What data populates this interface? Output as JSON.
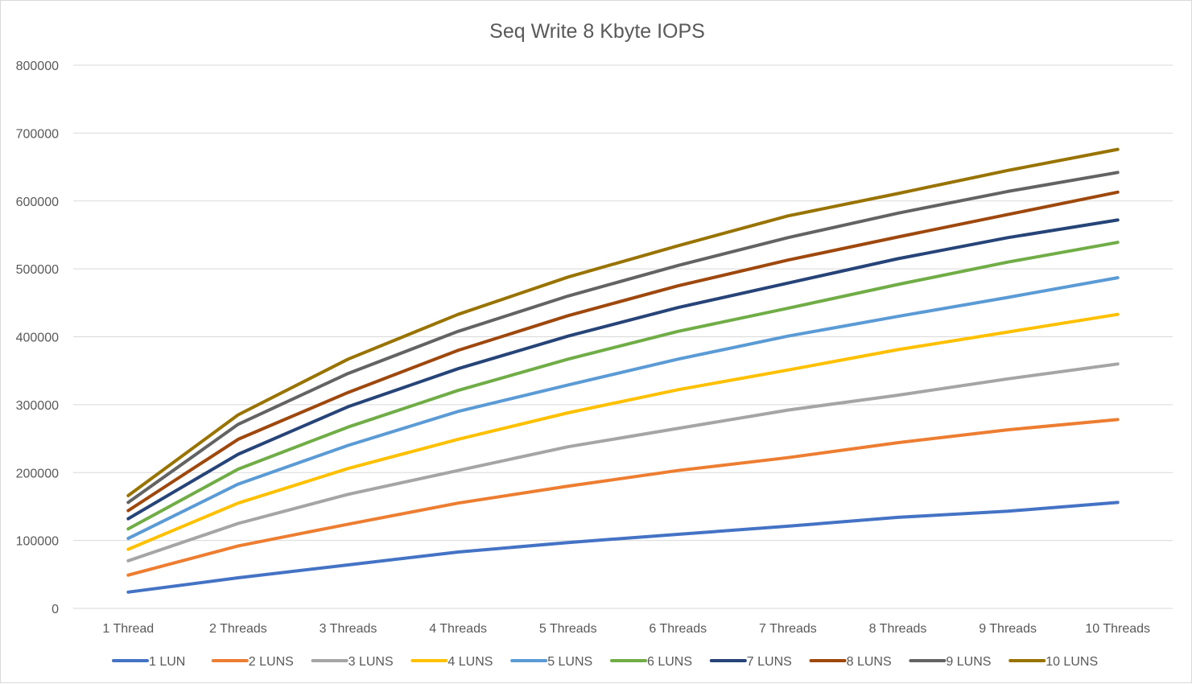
{
  "chart_data": {
    "type": "line",
    "title": "Seq Write 8 Kbyte IOPS",
    "xlabel": "",
    "ylabel": "",
    "ylim": [
      0,
      800000
    ],
    "yticks": [
      0,
      100000,
      200000,
      300000,
      400000,
      500000,
      600000,
      700000,
      800000
    ],
    "ytick_labels": [
      "0",
      "100000",
      "200000",
      "300000",
      "400000",
      "500000",
      "600000",
      "700000",
      "800000"
    ],
    "grid": true,
    "legend_position": "bottom",
    "categories": [
      "1 Thread",
      "2 Threads",
      "3 Threads",
      "4 Threads",
      "5 Threads",
      "6 Threads",
      "7 Threads",
      "8 Threads",
      "9 Threads",
      "10 Threads"
    ],
    "series": [
      {
        "name": "1 LUN",
        "color": "#4472c4",
        "values": [
          24000,
          45000,
          64000,
          83000,
          97000,
          109000,
          121000,
          134000,
          143000,
          156000
        ]
      },
      {
        "name": "2 LUNS",
        "color": "#ed7d31",
        "values": [
          49000,
          92000,
          124000,
          155000,
          180000,
          203000,
          222000,
          244000,
          263000,
          278000
        ]
      },
      {
        "name": "3 LUNS",
        "color": "#a5a5a5",
        "values": [
          70000,
          125000,
          168000,
          203000,
          238000,
          265000,
          292000,
          314000,
          338000,
          360000
        ]
      },
      {
        "name": "4 LUNS",
        "color": "#ffc000",
        "values": [
          87000,
          155000,
          206000,
          249000,
          288000,
          322000,
          351000,
          381000,
          407000,
          433000
        ]
      },
      {
        "name": "5 LUNS",
        "color": "#5b9bd5",
        "values": [
          103000,
          183000,
          240000,
          290000,
          329000,
          367000,
          401000,
          430000,
          458000,
          487000
        ]
      },
      {
        "name": "6 LUNS",
        "color": "#70ad47",
        "values": [
          117000,
          205000,
          267000,
          321000,
          367000,
          408000,
          442000,
          477000,
          510000,
          539000
        ]
      },
      {
        "name": "7 LUNS",
        "color": "#264478",
        "values": [
          132000,
          227000,
          297000,
          353000,
          401000,
          443000,
          479000,
          515000,
          546000,
          572000
        ]
      },
      {
        "name": "8 LUNS",
        "color": "#9e480e",
        "values": [
          144000,
          249000,
          318000,
          380000,
          431000,
          475000,
          513000,
          547000,
          580000,
          613000
        ]
      },
      {
        "name": "9 LUNS",
        "color": "#636363",
        "values": [
          156000,
          271000,
          346000,
          408000,
          460000,
          505000,
          546000,
          582000,
          614000,
          642000
        ]
      },
      {
        "name": "10 LUNS",
        "color": "#997300",
        "values": [
          166000,
          285000,
          367000,
          433000,
          488000,
          534000,
          578000,
          611000,
          645000,
          676000
        ]
      }
    ]
  }
}
